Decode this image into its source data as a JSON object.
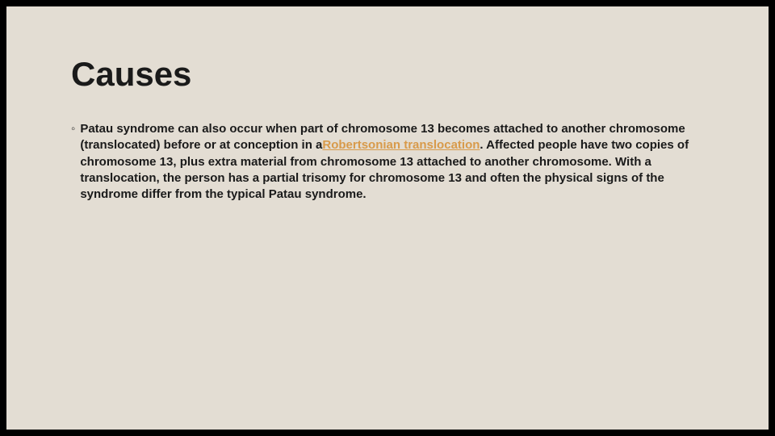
{
  "slide": {
    "background_color": "#e3ddd3",
    "outer_background_color": "#000000",
    "title": {
      "text": "Causes",
      "font_size_pt": 42,
      "font_weight": 700,
      "color": "#1a1a1a"
    },
    "bullet": {
      "marker": "◦",
      "marker_color": "#3a3a3a",
      "text_before_link": "Patau syndrome can also occur when part of chromosome 13 becomes attached to another chromosome (translocated) before or at conception in a",
      "link_text": "Robertsonian translocation",
      "link_color": "#d89a4a",
      "text_after_link": ". Affected people have two copies of chromosome 13, plus extra material from chromosome 13 attached to another chromosome. With a translocation, the person has a partial trisomy for chromosome 13 and often the physical signs of the syndrome differ from the typical Patau syndrome.",
      "font_size_pt": 15,
      "font_weight": 600,
      "color": "#1a1a1a",
      "line_height": 1.35
    }
  }
}
